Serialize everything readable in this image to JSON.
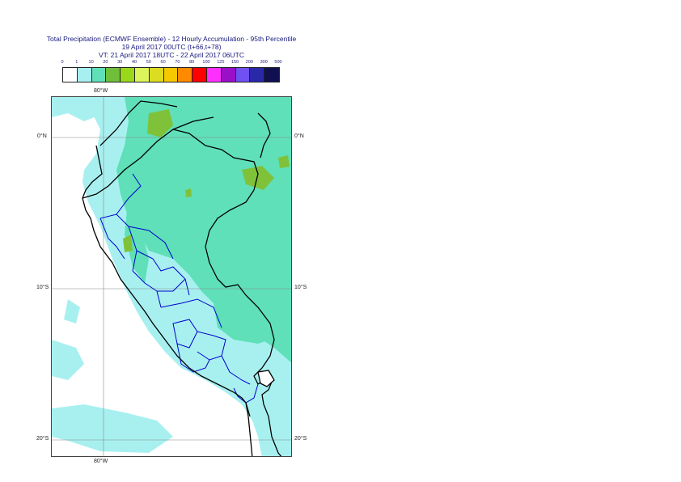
{
  "title": {
    "line1": "Total Precipitation (ECMWF Ensemble) - 12 Hourly Accumulation - 95th Percentile",
    "line2": "19 April 2017 00UTC (t+66,t+78)",
    "line3": "VT: 21 April 2017 18UTC - 22 April 2017 06UTC"
  },
  "legend": {
    "labels": [
      "0",
      "1",
      "10",
      "20",
      "30",
      "40",
      "50",
      "60",
      "70",
      "80",
      "100",
      "125",
      "150",
      "200",
      "300",
      "500"
    ],
    "colors": [
      "#ffffff",
      "#a8f0f0",
      "#5fe0b8",
      "#6fbf3a",
      "#9ad81a",
      "#dcf55a",
      "#dcdc20",
      "#f5c800",
      "#ff8a00",
      "#ff0000",
      "#ff30ff",
      "#9a10c8",
      "#7050f0",
      "#2828a8",
      "#101050"
    ]
  },
  "map": {
    "lon_labels": {
      "top": "80°W",
      "bottom": "80°W"
    },
    "lat_labels": {
      "lat0_left": "0°N",
      "lat0_right": "0°N",
      "lat10_left": "10°S",
      "lat10_right": "10°S",
      "lat20_left": "20°S",
      "lat20_right": "20°S"
    },
    "colors": {
      "light": "#a8f0f0",
      "medium": "#5fe0b8",
      "green": "#7fc23a",
      "border": "#000000",
      "region": "#0000cc",
      "grid": "#888888"
    }
  }
}
